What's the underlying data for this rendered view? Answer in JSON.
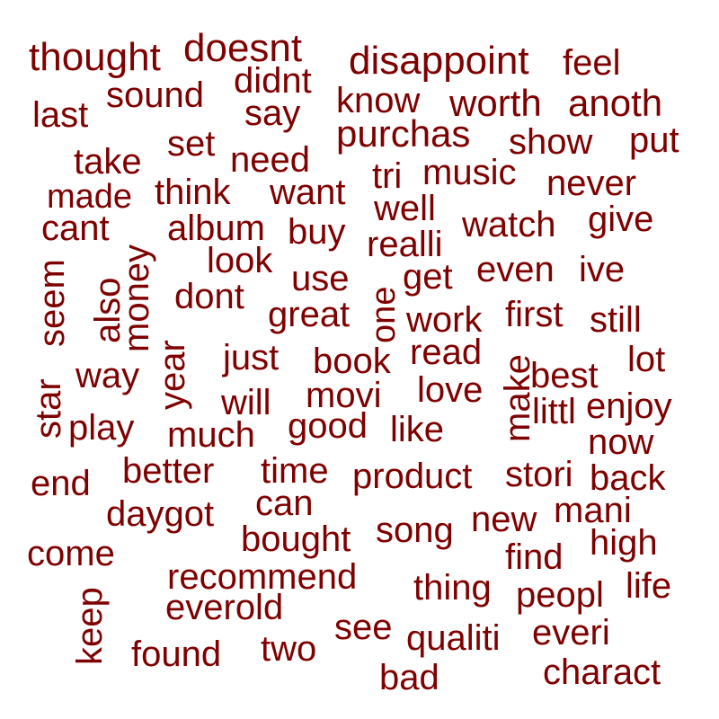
{
  "word_cloud": {
    "color": "#7f0000",
    "words": [
      "thought",
      "doesnt",
      "disappoint",
      "feel",
      "didnt",
      "sound",
      "last",
      "say",
      "know",
      "worth",
      "anoth",
      "purchas",
      "show",
      "put",
      "set",
      "take",
      "need",
      "music",
      "tri",
      "never",
      "made",
      "think",
      "want",
      "well",
      "give",
      "cant",
      "album",
      "buy",
      "watch",
      "realli",
      "look",
      "even",
      "ive",
      "use",
      "get",
      "seem",
      "money",
      "also",
      "dont",
      "one",
      "great",
      "work",
      "first",
      "still",
      "read",
      "lot",
      "just",
      "book",
      "way",
      "year",
      "best",
      "star",
      "make",
      "love",
      "movi",
      "will",
      "enjoy",
      "littl",
      "play",
      "good",
      "like",
      "much",
      "now",
      "better",
      "time",
      "product",
      "stori",
      "end",
      "back",
      "can",
      "daygot",
      "mani",
      "new",
      "song",
      "come",
      "bought",
      "high",
      "find",
      "recommend",
      "life",
      "keep",
      "thing",
      "peopl",
      "everold",
      "see",
      "everi",
      "qualiti",
      "found",
      "two",
      "charact",
      "bad"
    ]
  }
}
